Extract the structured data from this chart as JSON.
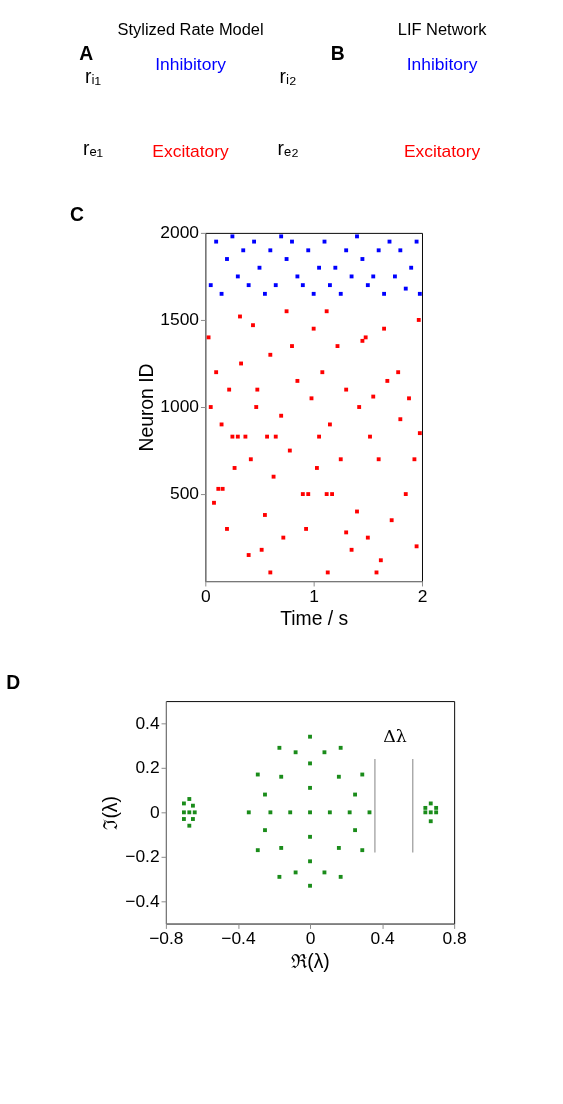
{
  "chart_data": [
    {
      "type": "other",
      "title": "Stylized Rate Model",
      "annotations": [
        "A",
        "Inhibitory",
        "Excitatory",
        "rᵢ₁",
        "rᵢ₂",
        "rₑ₁",
        "rₑ₂"
      ]
    },
    {
      "type": "other",
      "title": "LIF Network",
      "annotations": [
        "B",
        "Inhibitory",
        "Excitatory"
      ]
    },
    {
      "type": "scatter",
      "annotations": [
        "C"
      ],
      "xlabel": "Time / s",
      "ylabel": "Neuron ID",
      "xlim": [
        0,
        2
      ],
      "xticks": [
        0,
        1,
        2
      ],
      "ylim": [
        0,
        2000
      ],
      "yticks": [
        500,
        1000,
        1500,
        2000
      ],
      "grid": false,
      "legend": false,
      "marker": "square",
      "series": [
        {
          "color": "#ff0000",
          "x": [
            0.05,
            0.08,
            0.12,
            0.16,
            0.25,
            0.3,
            0.37,
            0.22,
            0.32,
            0.44,
            0.48,
            0.52,
            0.55,
            0.57,
            0.65,
            0.6,
            0.75,
            0.8,
            0.9,
            0.95,
            0.98,
            1.05,
            1.12,
            1.17,
            1.12,
            1.13,
            1.22,
            1.3,
            1.35,
            1.45,
            1.48,
            1.52,
            1.55,
            1.58,
            1.62,
            1.68,
            1.8,
            1.85,
            1.95,
            1.98,
            0.03,
            0.1,
            0.15,
            0.2,
            0.27,
            0.33,
            0.4,
            0.42,
            0.47,
            0.6,
            0.63,
            0.7,
            0.72,
            0.78,
            0.85,
            0.93,
            1.0,
            1.03,
            1.08,
            1.15,
            1.25,
            1.3,
            1.4,
            1.42,
            1.5,
            1.6,
            1.65,
            1.72,
            1.78,
            1.88,
            1.93,
            1.97
          ],
          "values": [
            1000,
            450,
            530,
            530,
            830,
            830,
            830,
            1100,
            1520,
            1470,
            1100,
            180,
            380,
            830,
            830,
            50,
            1550,
            1350,
            500,
            500,
            1050,
            830,
            500,
            500,
            1550,
            50,
            1350,
            280,
            180,
            1380,
            1400,
            830,
            1060,
            50,
            120,
            1150,
            930,
            500,
            200,
            850,
            1400,
            1200,
            900,
            300,
            650,
            1250,
            150,
            700,
            1000,
            1300,
            600,
            950,
            250,
            750,
            1150,
            300,
            1450,
            650,
            1200,
            900,
            700,
            1100,
            400,
            1000,
            250,
            700,
            1450,
            350,
            1200,
            1050,
            700,
            1500
          ]
        },
        {
          "color": "#0000ff",
          "x": [
            0.2,
            0.35,
            0.5,
            0.75,
            0.85,
            1.2,
            1.45,
            1.55,
            1.7,
            1.9,
            0.05,
            0.1,
            0.15,
            0.25,
            0.3,
            0.4,
            0.45,
            0.55,
            0.6,
            0.65,
            0.7,
            0.8,
            0.9,
            0.95,
            1.0,
            1.05,
            1.1,
            1.15,
            1.25,
            1.3,
            1.35,
            1.4,
            1.5,
            1.6,
            1.65,
            1.75,
            1.8,
            1.85,
            1.95,
            1.98
          ],
          "values": [
            1850,
            1900,
            1800,
            1850,
            1750,
            1800,
            1850,
            1750,
            1950,
            1800,
            1700,
            1950,
            1650,
            1980,
            1750,
            1700,
            1950,
            1650,
            1900,
            1700,
            1980,
            1950,
            1700,
            1900,
            1650,
            1800,
            1950,
            1700,
            1650,
            1900,
            1750,
            1980,
            1700,
            1900,
            1650,
            1750,
            1900,
            1680,
            1950,
            1650
          ]
        }
      ]
    },
    {
      "type": "scatter",
      "annotations": [
        "D",
        "Δλ"
      ],
      "xlabel": "ℜ(λ)",
      "ylabel": "ℑ(λ)",
      "xlim": [
        -0.8,
        0.8
      ],
      "xticks": [
        -0.8,
        -0.4,
        0,
        0.4,
        0.8
      ],
      "ylim": [
        -0.5,
        0.5
      ],
      "yticks": [
        -0.4,
        -0.2,
        0,
        0.2,
        0.4
      ],
      "grid": false,
      "legend": false,
      "marker": "square",
      "series": [
        {
          "color": "#1a8c1a",
          "x": [
            0.33,
            0.29,
            0.17,
            0,
            -0.17,
            -0.29,
            -0.34,
            -0.29,
            -0.17,
            0,
            0.17,
            0.29,
            0.22,
            0.16,
            0,
            -0.16,
            -0.22,
            -0.16,
            0,
            0.16,
            0.11,
            0,
            -0.11,
            0,
            0,
            0.08,
            -0.08,
            0.25,
            -0.25,
            0.08,
            -0.08,
            0.25,
            -0.25,
            -0.7,
            -0.67,
            -0.65,
            -0.7,
            -0.67,
            -0.64,
            -0.7,
            -0.67,
            -0.65,
            0.64,
            0.67,
            0.7,
            0.64,
            0.67,
            0.7,
            0.67
          ],
          "values": [
            0,
            0.17,
            0.29,
            0.34,
            0.29,
            0.17,
            0,
            -0.17,
            -0.29,
            -0.33,
            -0.29,
            -0.17,
            0,
            0.16,
            0.22,
            0.16,
            0,
            -0.16,
            -0.22,
            -0.16,
            0,
            0.11,
            0,
            -0.11,
            0,
            0.27,
            0.27,
            0.08,
            -0.08,
            -0.27,
            -0.27,
            -0.08,
            0.08,
            0.04,
            0.06,
            0.03,
            0,
            0,
            0,
            -0.03,
            -0.06,
            -0.03,
            0.02,
            0.04,
            0.02,
            0,
            0,
            0,
            -0.04
          ]
        },
        {
          "type": "line",
          "marker": "none",
          "color": "#aaaaaa",
          "x": [
            0.36,
            0.36
          ],
          "values": [
            -0.18,
            0.24
          ]
        },
        {
          "type": "line",
          "marker": "none",
          "color": "#aaaaaa",
          "x": [
            0.57,
            0.57
          ],
          "values": [
            -0.18,
            0.24
          ]
        }
      ]
    }
  ]
}
